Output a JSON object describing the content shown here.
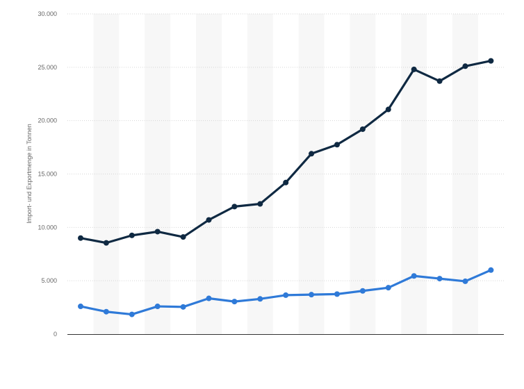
{
  "chart_data": {
    "type": "line",
    "title": "",
    "xlabel": "",
    "ylabel": "Import- und Exportmenge in Tonnen",
    "ylim": [
      0,
      30000
    ],
    "yticks": [
      0,
      5000,
      10000,
      15000,
      20000,
      25000,
      30000
    ],
    "ytick_labels": [
      "0",
      "5.000",
      "10.000",
      "15.000",
      "20.000",
      "25.000",
      "30.000"
    ],
    "grid": true,
    "legend": "none",
    "x": [
      1,
      2,
      3,
      4,
      5,
      6,
      7,
      8,
      9,
      10,
      11,
      12,
      13,
      14,
      15,
      16,
      17
    ],
    "series": [
      {
        "color": "#0f2942",
        "values": [
          9000,
          8550,
          9250,
          9600,
          9100,
          10700,
          11950,
          12200,
          14200,
          16900,
          17750,
          19200,
          21050,
          24800,
          23700,
          25100,
          25600
        ]
      },
      {
        "color": "#2f7ad8",
        "values": [
          2600,
          2100,
          1850,
          2600,
          2550,
          3350,
          3050,
          3300,
          3650,
          3700,
          3750,
          4050,
          4350,
          5450,
          5200,
          4950,
          6000
        ]
      }
    ]
  },
  "colors": {
    "band": "#f7f7f7",
    "grid": "#d6d6d6",
    "axis": "#333333"
  }
}
